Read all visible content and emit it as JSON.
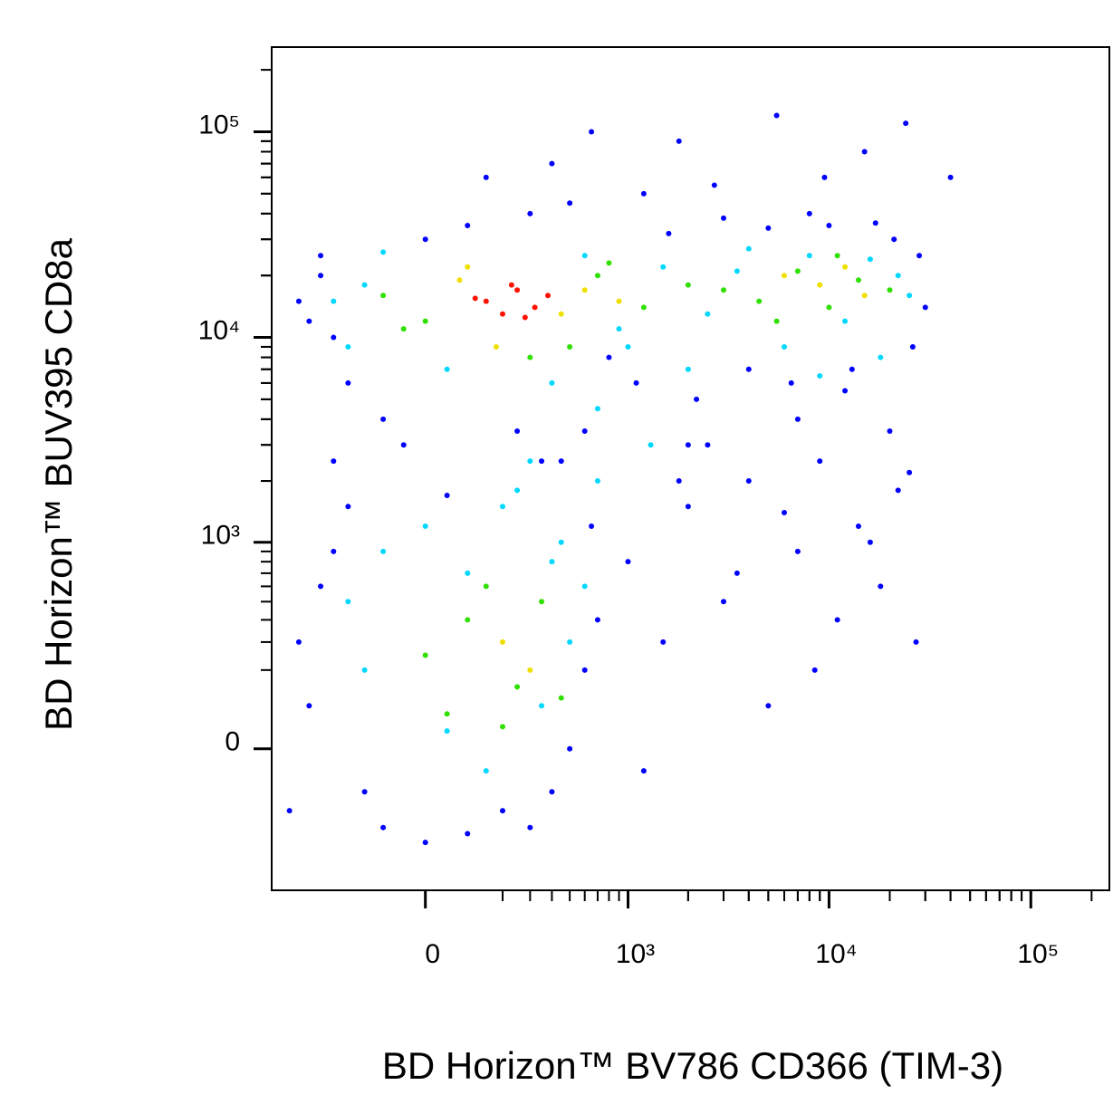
{
  "chart_data": {
    "type": "scatter",
    "x_label": "BD Horizon™ BV786 CD366 (TIM-3)",
    "y_label": "BD Horizon™ BUV395 CD8a",
    "xscale": "biexponential",
    "yscale": "biexponential",
    "xlim": [
      -560,
      245000
    ],
    "ylim": [
      -467,
      258000
    ],
    "xticks": [
      0,
      {
        "value": 1000,
        "label": "10³"
      },
      {
        "value": 10000,
        "label": "10⁴"
      },
      {
        "value": 100000,
        "label": "10⁵"
      }
    ],
    "yticks": [
      0,
      {
        "value": 1000,
        "label": "10³"
      },
      {
        "value": 10000,
        "label": "10⁴"
      },
      {
        "value": 100000,
        "label": "10⁵"
      }
    ],
    "series": [
      {
        "color": "#0000ff",
        "x": [
          -400,
          -300,
          -250,
          -350,
          -200,
          -100,
          0,
          100,
          300,
          500,
          800,
          1100,
          1600,
          2200,
          3000,
          4000,
          5000,
          6500,
          8000,
          10000,
          13000,
          17000,
          21000,
          26000,
          30000,
          -300,
          150,
          400,
          650,
          1800,
          2700,
          5500,
          9500,
          15000,
          24000,
          28000,
          600,
          2000,
          7000,
          40000,
          -50,
          350,
          1200,
          12000,
          -400,
          -300,
          -350,
          -250,
          -200,
          -150,
          -100,
          0,
          100,
          200,
          300,
          400,
          500,
          600,
          700,
          -450,
          -250,
          50,
          250,
          450,
          650,
          1000,
          1500,
          2000,
          3000,
          4000,
          5000,
          7000,
          9000,
          11000,
          14000,
          18000,
          22000,
          27000,
          1200,
          2500,
          6000,
          8500,
          16000,
          25000,
          3500,
          20000,
          1800
        ],
        "values": [
          15000,
          20000,
          10000,
          12000,
          6000,
          4000,
          30000,
          35000,
          40000,
          45000,
          8000,
          6000,
          32000,
          5000,
          38000,
          7000,
          34000,
          6000,
          40000,
          35000,
          7000,
          36000,
          30000,
          9000,
          14000,
          25000,
          60000,
          70000,
          100000,
          90000,
          55000,
          120000,
          60000,
          80000,
          110000,
          25000,
          3500,
          3000,
          4000,
          60000,
          3000,
          2500,
          50000,
          5500,
          300,
          600,
          100,
          900,
          1500,
          -100,
          -200,
          -250,
          -220,
          -150,
          -200,
          -100,
          0,
          200,
          400,
          -150,
          2500,
          1700,
          3500,
          2500,
          1200,
          800,
          300,
          1500,
          500,
          2000,
          100,
          900,
          2500,
          400,
          1200,
          600,
          1800,
          300,
          -50,
          3000,
          1400,
          200,
          1000,
          2200,
          700,
          3500,
          2000
        ]
      },
      {
        "color": "#00d8ff",
        "x": [
          -250,
          -150,
          -200,
          50,
          600,
          1000,
          1500,
          2500,
          3500,
          6000,
          8000,
          12000,
          16000,
          22000,
          25000,
          400,
          700,
          900,
          -100,
          2000,
          -200,
          -100,
          0,
          100,
          200,
          300,
          400,
          500,
          600,
          50,
          150,
          250,
          350,
          -150,
          450,
          700,
          1300,
          18000,
          9000,
          4000
        ],
        "values": [
          15000,
          18000,
          9000,
          7000,
          25000,
          9000,
          22000,
          13000,
          21000,
          9000,
          25000,
          12000,
          24000,
          20000,
          16000,
          6000,
          4500,
          11000,
          26000,
          7000,
          500,
          900,
          1200,
          700,
          1500,
          2500,
          800,
          300,
          600,
          40,
          -50,
          1800,
          100,
          200,
          1000,
          2000,
          3000,
          8000,
          6500,
          27000
        ]
      },
      {
        "color": "#30e000",
        "x": [
          -100,
          0,
          700,
          1200,
          2000,
          3000,
          4500,
          7000,
          10000,
          14000,
          20000,
          500,
          100,
          250,
          350,
          0,
          450,
          150,
          50,
          200,
          -50,
          800,
          5500,
          11000,
          300
        ],
        "values": [
          16000,
          12000,
          20000,
          14000,
          18000,
          17000,
          15000,
          21000,
          14000,
          19000,
          17000,
          9000,
          400,
          150,
          500,
          250,
          120,
          600,
          80,
          50,
          11000,
          23000,
          12000,
          25000,
          8000
        ]
      },
      {
        "color": "#f0e000",
        "x": [
          80,
          450,
          600,
          900,
          6000,
          9000,
          12000,
          15000,
          200,
          300,
          100,
          180
        ],
        "values": [
          19000,
          13000,
          17000,
          15000,
          20000,
          18000,
          22000,
          16000,
          300,
          200,
          22000,
          9000
        ]
      },
      {
        "color": "#ff1000",
        "x": [
          150,
          250,
          320,
          200,
          380,
          120,
          280,
          230
        ],
        "values": [
          15000,
          17000,
          14000,
          13000,
          16000,
          15500,
          12500,
          18000
        ]
      }
    ]
  }
}
